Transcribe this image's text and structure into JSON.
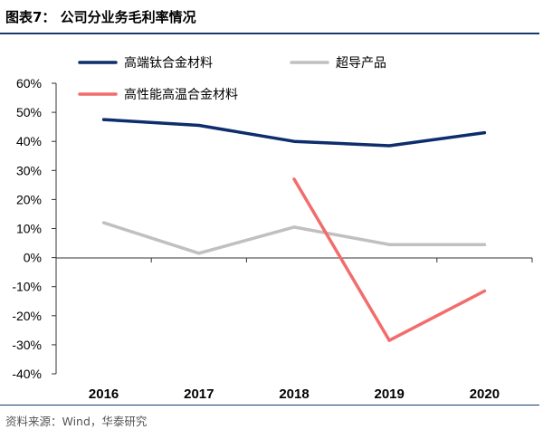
{
  "figure": {
    "title": "图表7： 公司分业务毛利率情况",
    "source": "资料来源：Wind，华泰研究"
  },
  "chart_data": {
    "type": "line",
    "title": "公司分业务毛利率情况",
    "categories": [
      "2016",
      "2017",
      "2018",
      "2019",
      "2020"
    ],
    "yticks": [
      "60%",
      "50%",
      "40%",
      "30%",
      "20%",
      "10%",
      "0%",
      "-10%",
      "-20%",
      "-30%",
      "-40%"
    ],
    "ylim": [
      -40,
      60
    ],
    "ystep": 10,
    "xlabel": "",
    "ylabel": "",
    "legend_position": "top",
    "series": [
      {
        "name": "高端钛合金材料",
        "color": "#0d2d6c",
        "values": [
          47.5,
          45.5,
          40,
          38.5,
          43
        ]
      },
      {
        "name": "超导产品",
        "color": "#c0c0c0",
        "values": [
          12,
          1.5,
          10.5,
          4.5,
          4.5
        ]
      },
      {
        "name": "高性能高温合金材料",
        "color": "#f26c6c",
        "values": [
          null,
          null,
          27,
          -28.5,
          -11.5
        ]
      }
    ]
  }
}
